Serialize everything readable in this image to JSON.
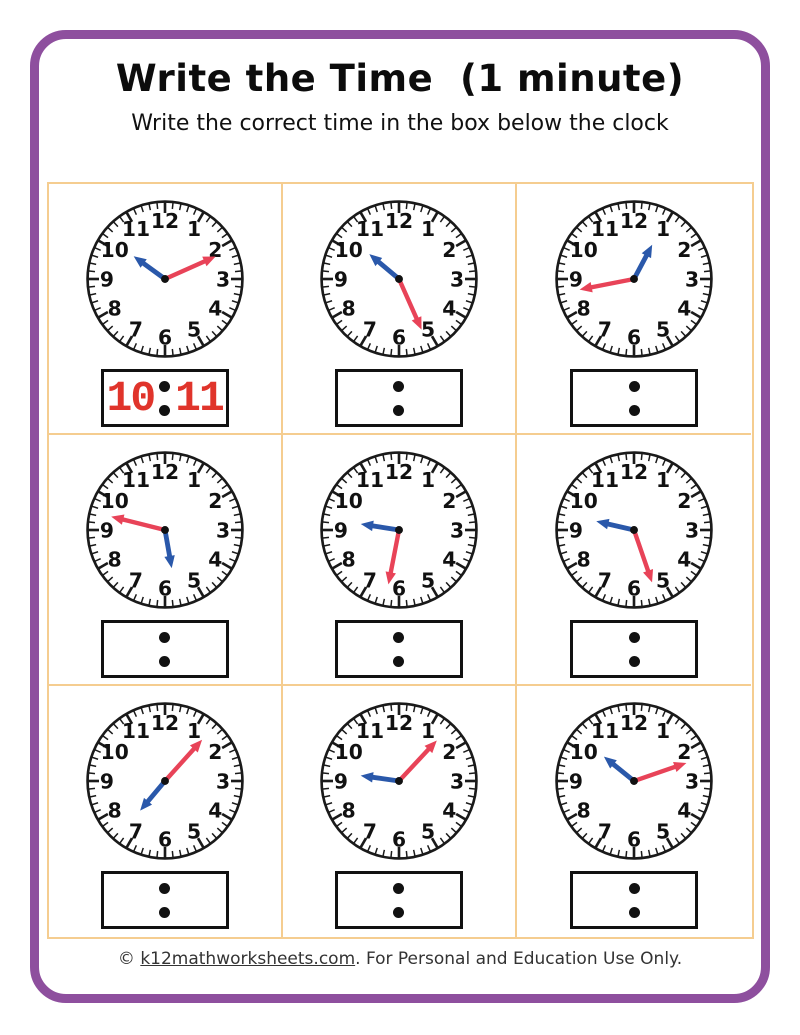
{
  "header": {
    "title": "Write the Time  (1 minute)",
    "subtitle": "Write the correct time in the box below the clock"
  },
  "clock_face": {
    "numbers": [
      "1",
      "2",
      "3",
      "4",
      "5",
      "6",
      "7",
      "8",
      "9",
      "10",
      "11",
      "12"
    ]
  },
  "clocks": [
    {
      "position": "row1-col1",
      "hour_hand_angle_deg": 306,
      "minute_hand_angle_deg": 66,
      "answer": {
        "hour": "10",
        "minute": "11"
      }
    },
    {
      "position": "row1-col2",
      "hour_hand_angle_deg": 310,
      "minute_hand_angle_deg": 156,
      "answer": {
        "hour": "",
        "minute": ""
      }
    },
    {
      "position": "row1-col3",
      "hour_hand_angle_deg": 28,
      "minute_hand_angle_deg": 259,
      "answer": {
        "hour": "",
        "minute": ""
      }
    },
    {
      "position": "row2-col1",
      "hour_hand_angle_deg": 170,
      "minute_hand_angle_deg": 284,
      "answer": {
        "hour": "",
        "minute": ""
      }
    },
    {
      "position": "row2-col2",
      "hour_hand_angle_deg": 279,
      "minute_hand_angle_deg": 191,
      "answer": {
        "hour": "",
        "minute": ""
      }
    },
    {
      "position": "row2-col3",
      "hour_hand_angle_deg": 283,
      "minute_hand_angle_deg": 161,
      "answer": {
        "hour": "",
        "minute": ""
      }
    },
    {
      "position": "row3-col1",
      "hour_hand_angle_deg": 220,
      "minute_hand_angle_deg": 42,
      "answer": {
        "hour": "",
        "minute": ""
      }
    },
    {
      "position": "row3-col2",
      "hour_hand_angle_deg": 278,
      "minute_hand_angle_deg": 43,
      "answer": {
        "hour": "",
        "minute": ""
      }
    },
    {
      "position": "row3-col3",
      "hour_hand_angle_deg": 309,
      "minute_hand_angle_deg": 71,
      "answer": {
        "hour": "",
        "minute": ""
      }
    }
  ],
  "colors": {
    "frame_border": "#8e4f9e",
    "grid_line": "#f5cd90",
    "clock_outline": "#1a1a1a",
    "hour_hand": "#2a58aa",
    "minute_hand": "#e84358",
    "answer_text": "#e0342b",
    "colon_dot": "#111111"
  },
  "footer": {
    "prefix": "© ",
    "link_text": "k12mathworksheets.com",
    "suffix": ". For Personal and Education Use Only."
  }
}
